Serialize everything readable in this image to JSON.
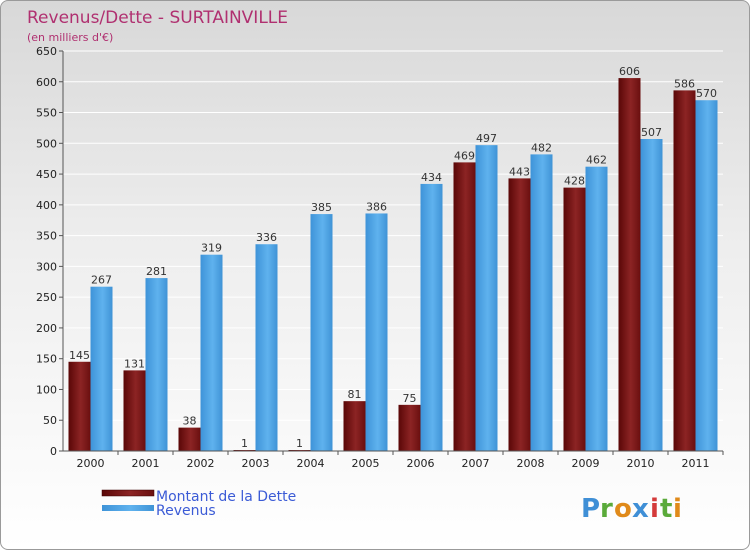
{
  "chart_data": {
    "type": "bar",
    "title": "Revenus/Dette - SURTAINVILLE",
    "subtitle": "(en milliers d'€)",
    "categories": [
      "2000",
      "2001",
      "2002",
      "2003",
      "2004",
      "2005",
      "2006",
      "2007",
      "2008",
      "2009",
      "2010",
      "2011"
    ],
    "series": [
      {
        "name": "Montant de la Dette",
        "color": "#7a1414",
        "values": [
          145,
          131,
          38,
          1,
          1,
          81,
          75,
          469,
          443,
          428,
          606,
          586
        ]
      },
      {
        "name": "Revenus",
        "color": "#4ea3e6",
        "values": [
          267,
          281,
          319,
          336,
          385,
          386,
          434,
          497,
          482,
          462,
          507,
          570
        ]
      }
    ],
    "ylim": [
      0,
      650
    ],
    "ytick_step": 50,
    "grid": true,
    "legend_position": "bottom-left"
  },
  "branding": {
    "logo_text": "Proxiti"
  }
}
